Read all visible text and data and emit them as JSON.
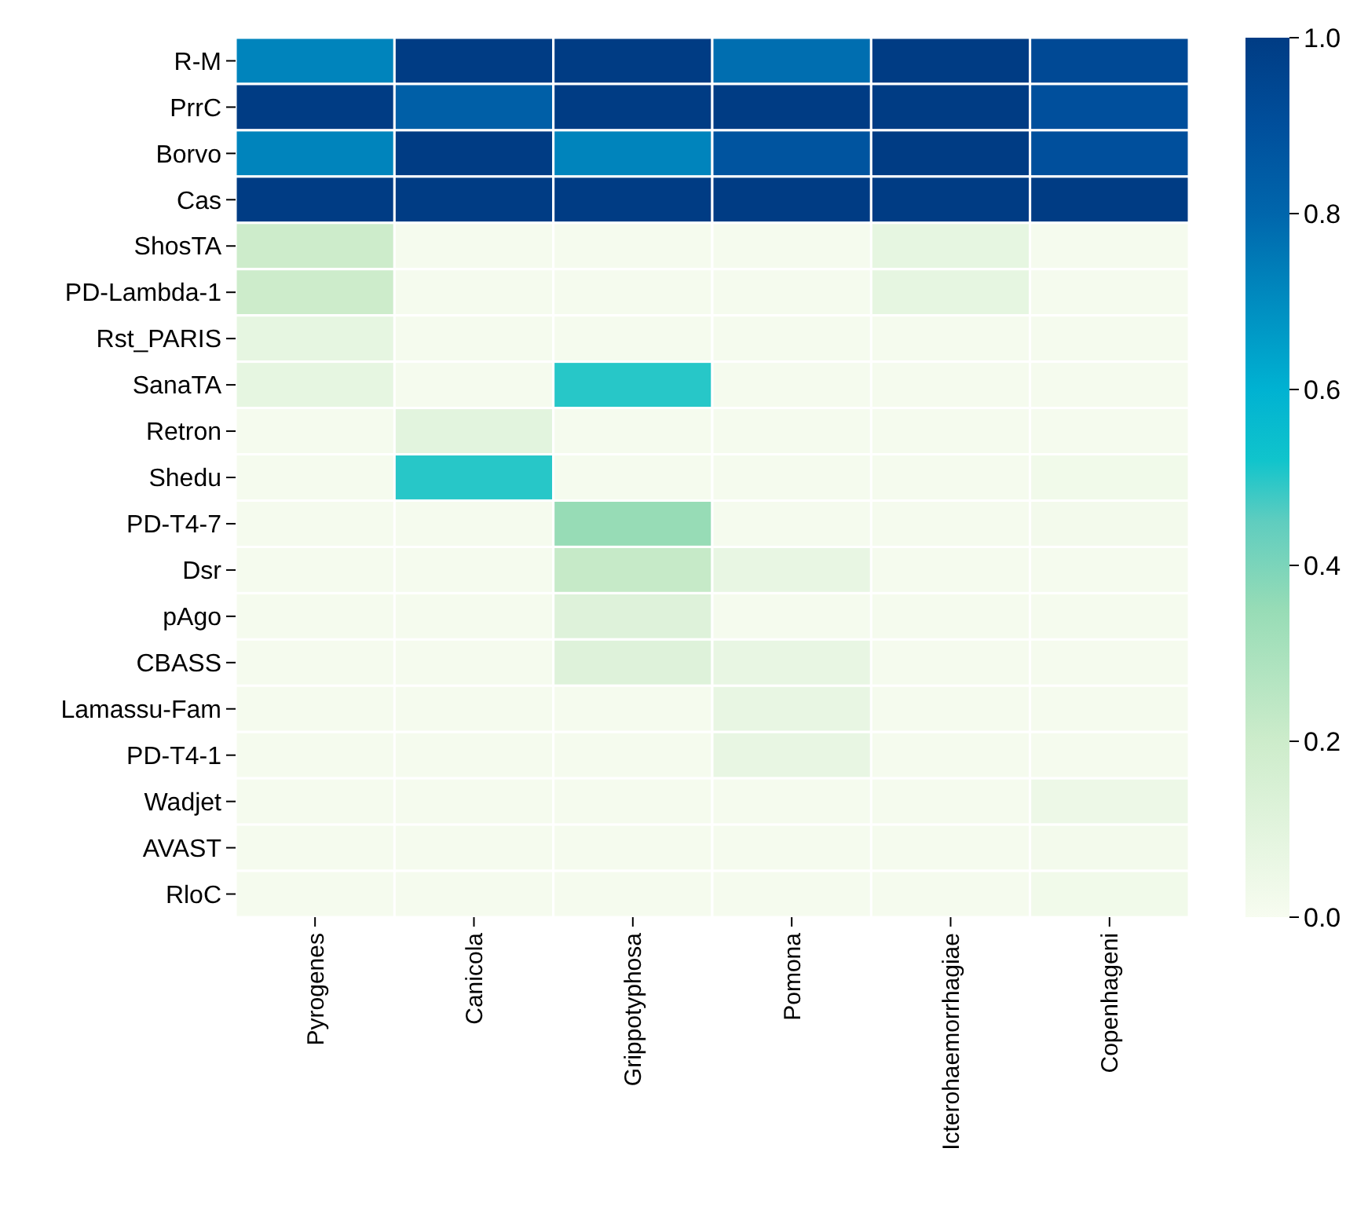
{
  "chart_data": {
    "type": "heatmap",
    "categories": [
      "Pyrogenes",
      "Canicola",
      "Grippotyphosa",
      "Pomona",
      "Icterohaemorrhagiae",
      "Copenhageni"
    ],
    "y_categories": [
      "R-M",
      "PrrC",
      "Borvo",
      "Cas",
      "ShosTA",
      "PD-Lambda-1",
      "Rst_PARIS",
      "SanaTA",
      "Retron",
      "Shedu",
      "PD-T4-7",
      "Dsr",
      "pAgo",
      "CBASS",
      "Lamassu-Fam",
      "PD-T4-1",
      "Wadjet",
      "AVAST",
      "RloC"
    ],
    "cells": [
      [
        0.72,
        1.0,
        1.0,
        0.78,
        1.0,
        0.93
      ],
      [
        1.0,
        0.83,
        1.0,
        1.0,
        1.0,
        0.9
      ],
      [
        0.72,
        1.0,
        0.72,
        0.88,
        1.0,
        0.9
      ],
      [
        1.0,
        1.0,
        1.0,
        1.0,
        1.0,
        1.0
      ],
      [
        0.2,
        0.01,
        0.01,
        0.01,
        0.08,
        0.01
      ],
      [
        0.2,
        0.01,
        0.01,
        0.01,
        0.08,
        0.01
      ],
      [
        0.08,
        0.01,
        0.01,
        0.01,
        0.01,
        0.01
      ],
      [
        0.08,
        0.01,
        0.5,
        0.01,
        0.01,
        0.01
      ],
      [
        0.01,
        0.1,
        0.01,
        0.01,
        0.01,
        0.01
      ],
      [
        0.01,
        0.5,
        0.01,
        0.01,
        0.01,
        0.03
      ],
      [
        0.01,
        0.01,
        0.35,
        0.01,
        0.01,
        0.02
      ],
      [
        0.01,
        0.01,
        0.22,
        0.07,
        0.01,
        0.01
      ],
      [
        0.01,
        0.01,
        0.12,
        0.01,
        0.01,
        0.01
      ],
      [
        0.01,
        0.01,
        0.12,
        0.07,
        0.01,
        0.01
      ],
      [
        0.01,
        0.01,
        0.01,
        0.07,
        0.01,
        0.01
      ],
      [
        0.01,
        0.01,
        0.01,
        0.07,
        0.01,
        0.01
      ],
      [
        0.01,
        0.01,
        0.01,
        0.01,
        0.01,
        0.05
      ],
      [
        0.01,
        0.01,
        0.01,
        0.01,
        0.01,
        0.02
      ],
      [
        0.01,
        0.01,
        0.01,
        0.01,
        0.01,
        0.03
      ]
    ],
    "clim": [
      0,
      1
    ],
    "cticks": [
      {
        "value": 0,
        "label": "0.0"
      },
      0.2,
      0.4,
      0.6,
      0.8,
      {
        "value": 1,
        "label": "1.0"
      }
    ]
  }
}
